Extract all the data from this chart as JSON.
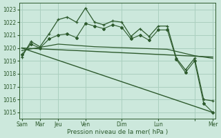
{
  "bg_color": "#cce8dc",
  "grid_color": "#aacfbf",
  "line_color": "#2d5a2d",
  "text_color": "#2d5a2d",
  "xlabel": "Pression niveau de la mer( hPa )",
  "ylim": [
    1014.5,
    1023.5
  ],
  "yticks": [
    1015,
    1016,
    1017,
    1018,
    1019,
    1020,
    1021,
    1022,
    1023
  ],
  "xlim": [
    -0.3,
    21.3
  ],
  "series1_x": [
    0,
    1,
    2,
    3,
    4,
    5,
    6,
    7,
    8,
    9,
    10,
    11,
    12,
    13,
    14,
    15,
    16,
    17,
    18,
    19,
    20,
    21
  ],
  "series1_y": [
    1019.3,
    1020.5,
    1020.1,
    1021.1,
    1022.2,
    1022.4,
    1022.0,
    1023.1,
    1022.0,
    1021.8,
    1022.1,
    1022.0,
    1020.9,
    1021.5,
    1020.9,
    1021.7,
    1021.7,
    1019.2,
    1018.3,
    1019.2,
    1016.0,
    1015.9
  ],
  "series2_x": [
    0,
    1,
    2,
    3,
    4,
    5,
    6,
    7,
    8,
    9,
    10,
    11,
    12,
    13,
    14,
    15,
    16,
    17,
    18,
    19,
    20,
    21
  ],
  "series2_y": [
    1019.5,
    1020.3,
    1020.0,
    1020.7,
    1021.0,
    1021.1,
    1020.8,
    1021.9,
    1021.7,
    1021.5,
    1021.8,
    1021.6,
    1020.7,
    1021.0,
    1020.6,
    1021.4,
    1021.4,
    1019.1,
    1018.1,
    1019.0,
    1015.7,
    1015.0
  ],
  "series3_x": [
    0,
    21
  ],
  "series3_y": [
    1020.0,
    1019.3
  ],
  "series4_x": [
    0,
    21
  ],
  "series4_y": [
    1020.0,
    1015.0
  ],
  "series5_x": [
    0,
    4,
    8,
    12,
    16,
    19,
    21
  ],
  "series5_y": [
    1019.8,
    1020.3,
    1020.1,
    1020.0,
    1019.9,
    1019.4,
    1019.2
  ],
  "tick_positions": [
    0,
    2,
    4,
    7,
    11,
    15,
    19,
    21
  ],
  "tick_labels": [
    "Sam",
    "Mar",
    "Jeu",
    "Ven",
    "Dim",
    "Lun",
    "",
    "Mer"
  ]
}
